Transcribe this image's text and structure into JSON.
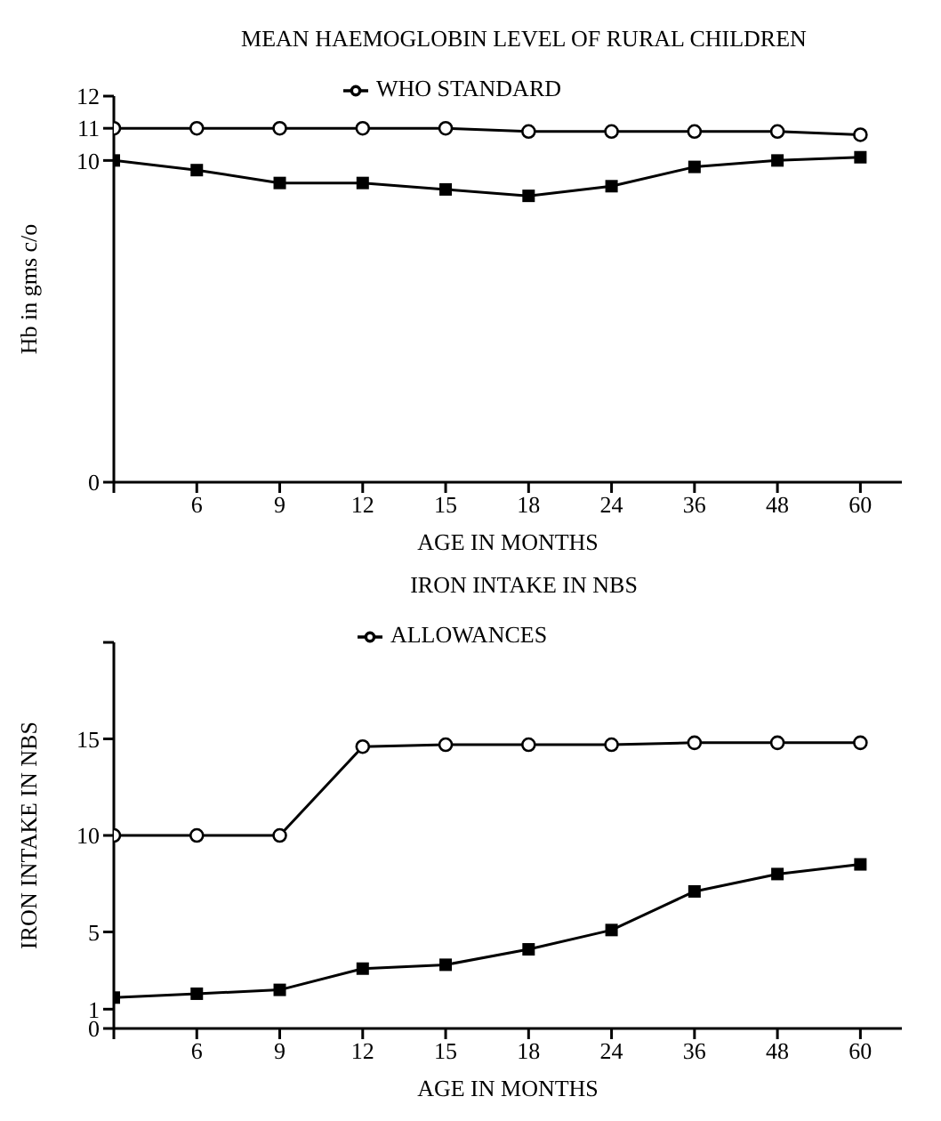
{
  "chart_data": [
    {
      "type": "line",
      "title": "MEAN HAEMOGLOBIN LEVEL OF RURAL CHILDREN",
      "xlabel": "AGE IN MONTHS",
      "ylabel": "Hb in gms c/o",
      "categories": [
        null,
        "6",
        "9",
        "12",
        "15",
        "18",
        "24",
        "36",
        "48",
        "60"
      ],
      "series": [
        {
          "name": "WHO STANDARD",
          "color": "#000000",
          "marker": "circle",
          "values": [
            11,
            11,
            11,
            11,
            11,
            10.9,
            10.9,
            10.9,
            10.9,
            10.8
          ]
        },
        {
          "color": "#000000",
          "marker": "square",
          "values": [
            10.0,
            9.7,
            9.3,
            9.3,
            9.1,
            8.9,
            9.2,
            9.8,
            10.0,
            10.1
          ]
        }
      ],
      "ylim": [
        0,
        12
      ],
      "yticks": [
        0,
        10,
        11,
        12
      ],
      "grid": false,
      "legend": "top"
    },
    {
      "type": "line",
      "title": "IRON INTAKE IN NBS",
      "xlabel": "AGE IN MONTHS",
      "ylabel": "IRON INTAKE IN NBS",
      "categories": [
        null,
        "6",
        "9",
        "12",
        "15",
        "18",
        "24",
        "36",
        "48",
        "60"
      ],
      "series": [
        {
          "name": "ALLOWANCES",
          "color": "#000000",
          "marker": "circle",
          "values": [
            10,
            10,
            10,
            14.6,
            14.7,
            14.7,
            14.7,
            14.8,
            14.8,
            14.8
          ]
        },
        {
          "color": "#000000",
          "marker": "square",
          "values": [
            1.6,
            1.8,
            2.0,
            3.1,
            3.3,
            4.1,
            5.1,
            7.1,
            8.0,
            8.5
          ]
        }
      ],
      "ylim": [
        0,
        20
      ],
      "yticks": [
        0,
        1,
        5,
        10,
        15,
        {
          "value": 20,
          "label": null
        }
      ],
      "grid": false,
      "legend": "top"
    }
  ]
}
